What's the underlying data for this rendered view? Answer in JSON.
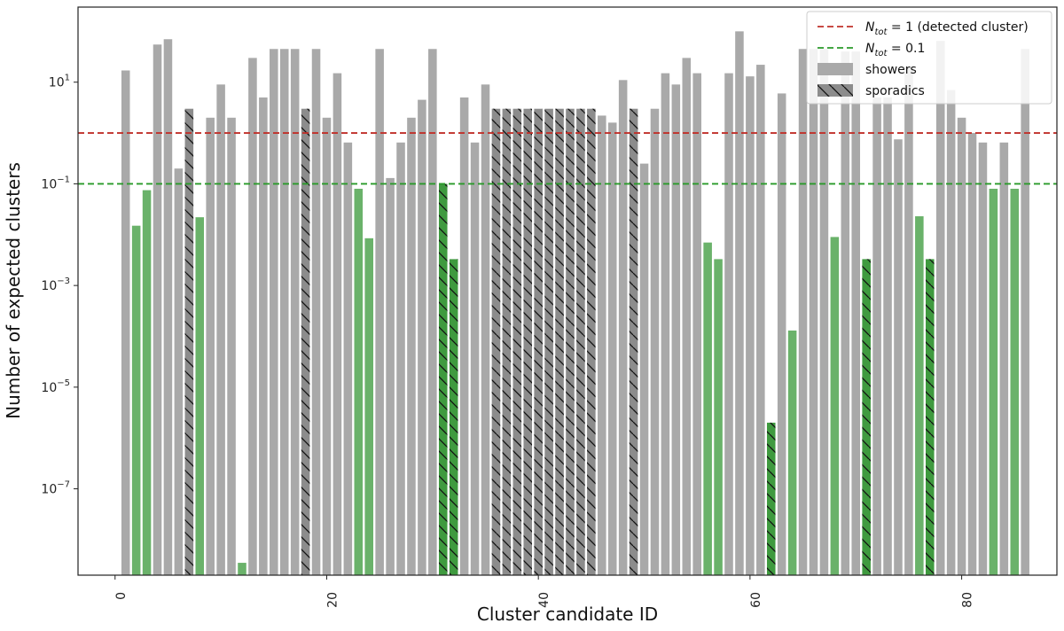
{
  "chart_data": {
    "type": "bar",
    "xlabel": "Cluster candidate ID",
    "ylabel": "Number of expected clusters",
    "xlim": [
      -3.5,
      89
    ],
    "ylim_log": [
      2e-09,
      300
    ],
    "yscale": "log",
    "x_ticks": [
      0,
      20,
      40,
      60,
      80
    ],
    "x_tick_labels": [
      "0",
      "20",
      "40",
      "60",
      "80"
    ],
    "y_ticks": [
      1e-07,
      1e-05,
      0.001,
      0.1,
      10
    ],
    "y_tick_labels": [
      {
        "base": "10",
        "exp": "−7"
      },
      {
        "base": "10",
        "exp": "−5"
      },
      {
        "base": "10",
        "exp": "−3"
      },
      {
        "base": "10",
        "exp": "−1"
      },
      {
        "base": "10",
        "exp": "1"
      }
    ],
    "grid": false,
    "legend_position": "top-right",
    "reference_lines": [
      {
        "name": "N_tot = 1 (detected cluster)",
        "value": 1,
        "color": "#c0302a",
        "label_main": "N",
        "label_sub": "tot",
        "label_rest": " = 1 (detected cluster)"
      },
      {
        "name": "N_tot = 0.1",
        "value": 0.1,
        "color": "#2a9a2a",
        "label_main": "N",
        "label_sub": "tot",
        "label_rest": " = 0.1"
      }
    ],
    "series": [
      {
        "name": "showers",
        "kind": "showers"
      },
      {
        "name": "sporadics",
        "kind": "sporadics"
      }
    ],
    "colors": {
      "showers_gray": "#a9a9a9",
      "sporadics_gray": "#8c8c8c",
      "showers_green": "#6ab26a",
      "sporadics_green": "#3f9a3f"
    },
    "bars": [
      {
        "id": 1,
        "value": 17,
        "kind": "showers"
      },
      {
        "id": 2,
        "value": 0.015,
        "kind": "showers"
      },
      {
        "id": 3,
        "value": 0.075,
        "kind": "showers"
      },
      {
        "id": 4,
        "value": 55,
        "kind": "showers"
      },
      {
        "id": 5,
        "value": 70,
        "kind": "showers"
      },
      {
        "id": 6,
        "value": 0.2,
        "kind": "showers"
      },
      {
        "id": 7,
        "value": 3,
        "kind": "sporadics"
      },
      {
        "id": 8,
        "value": 0.022,
        "kind": "showers"
      },
      {
        "id": 9,
        "value": 2,
        "kind": "showers"
      },
      {
        "id": 10,
        "value": 9,
        "kind": "showers"
      },
      {
        "id": 11,
        "value": 2,
        "kind": "showers"
      },
      {
        "id": 12,
        "value": 3.5e-09,
        "kind": "showers"
      },
      {
        "id": 13,
        "value": 30,
        "kind": "showers"
      },
      {
        "id": 14,
        "value": 5,
        "kind": "showers"
      },
      {
        "id": 15,
        "value": 45,
        "kind": "showers"
      },
      {
        "id": 16,
        "value": 45,
        "kind": "showers"
      },
      {
        "id": 17,
        "value": 45,
        "kind": "showers"
      },
      {
        "id": 18,
        "value": 3,
        "kind": "sporadics"
      },
      {
        "id": 19,
        "value": 45,
        "kind": "showers"
      },
      {
        "id": 20,
        "value": 2,
        "kind": "showers"
      },
      {
        "id": 21,
        "value": 15,
        "kind": "showers"
      },
      {
        "id": 22,
        "value": 0.65,
        "kind": "showers"
      },
      {
        "id": 23,
        "value": 0.08,
        "kind": "showers"
      },
      {
        "id": 24,
        "value": 0.0085,
        "kind": "showers"
      },
      {
        "id": 25,
        "value": 45,
        "kind": "showers"
      },
      {
        "id": 26,
        "value": 0.13,
        "kind": "showers"
      },
      {
        "id": 27,
        "value": 0.65,
        "kind": "showers"
      },
      {
        "id": 28,
        "value": 2,
        "kind": "showers"
      },
      {
        "id": 29,
        "value": 4.5,
        "kind": "showers"
      },
      {
        "id": 30,
        "value": 45,
        "kind": "showers"
      },
      {
        "id": 31,
        "value": 0.1,
        "kind": "sporadics"
      },
      {
        "id": 32,
        "value": 0.0033,
        "kind": "sporadics"
      },
      {
        "id": 33,
        "value": 5,
        "kind": "showers"
      },
      {
        "id": 34,
        "value": 0.65,
        "kind": "showers"
      },
      {
        "id": 35,
        "value": 9,
        "kind": "showers"
      },
      {
        "id": 36,
        "value": 3,
        "kind": "sporadics"
      },
      {
        "id": 37,
        "value": 3,
        "kind": "sporadics"
      },
      {
        "id": 38,
        "value": 3,
        "kind": "sporadics"
      },
      {
        "id": 39,
        "value": 3,
        "kind": "sporadics"
      },
      {
        "id": 40,
        "value": 3,
        "kind": "sporadics"
      },
      {
        "id": 41,
        "value": 3,
        "kind": "sporadics"
      },
      {
        "id": 42,
        "value": 3,
        "kind": "sporadics"
      },
      {
        "id": 43,
        "value": 3,
        "kind": "sporadics"
      },
      {
        "id": 44,
        "value": 3,
        "kind": "sporadics"
      },
      {
        "id": 45,
        "value": 3,
        "kind": "sporadics"
      },
      {
        "id": 46,
        "value": 2.2,
        "kind": "showers"
      },
      {
        "id": 47,
        "value": 1.6,
        "kind": "showers"
      },
      {
        "id": 48,
        "value": 11,
        "kind": "showers"
      },
      {
        "id": 49,
        "value": 3,
        "kind": "sporadics"
      },
      {
        "id": 50,
        "value": 0.25,
        "kind": "showers"
      },
      {
        "id": 51,
        "value": 3,
        "kind": "showers"
      },
      {
        "id": 52,
        "value": 15,
        "kind": "showers"
      },
      {
        "id": 53,
        "value": 9,
        "kind": "showers"
      },
      {
        "id": 54,
        "value": 30,
        "kind": "showers"
      },
      {
        "id": 55,
        "value": 15,
        "kind": "showers"
      },
      {
        "id": 56,
        "value": 0.007,
        "kind": "showers"
      },
      {
        "id": 57,
        "value": 0.0033,
        "kind": "showers"
      },
      {
        "id": 58,
        "value": 15,
        "kind": "showers"
      },
      {
        "id": 59,
        "value": 100,
        "kind": "showers"
      },
      {
        "id": 60,
        "value": 13,
        "kind": "showers"
      },
      {
        "id": 61,
        "value": 22,
        "kind": "showers"
      },
      {
        "id": 62,
        "value": 2e-06,
        "kind": "sporadics"
      },
      {
        "id": 63,
        "value": 6,
        "kind": "showers"
      },
      {
        "id": 64,
        "value": 0.00013,
        "kind": "showers"
      },
      {
        "id": 65,
        "value": 45,
        "kind": "showers"
      },
      {
        "id": 66,
        "value": 45,
        "kind": "showers"
      },
      {
        "id": 67,
        "value": 45,
        "kind": "showers"
      },
      {
        "id": 68,
        "value": 0.009,
        "kind": "showers"
      },
      {
        "id": 69,
        "value": 40,
        "kind": "showers"
      },
      {
        "id": 70,
        "value": 40,
        "kind": "showers"
      },
      {
        "id": 71,
        "value": 0.0033,
        "kind": "sporadics"
      },
      {
        "id": 72,
        "value": 5,
        "kind": "showers"
      },
      {
        "id": 73,
        "value": 5,
        "kind": "showers"
      },
      {
        "id": 74,
        "value": 0.75,
        "kind": "showers"
      },
      {
        "id": 75,
        "value": 20,
        "kind": "showers"
      },
      {
        "id": 76,
        "value": 0.023,
        "kind": "showers"
      },
      {
        "id": 77,
        "value": 0.0033,
        "kind": "sporadics"
      },
      {
        "id": 78,
        "value": 65,
        "kind": "showers"
      },
      {
        "id": 79,
        "value": 7,
        "kind": "showers"
      },
      {
        "id": 80,
        "value": 2,
        "kind": "showers"
      },
      {
        "id": 81,
        "value": 1,
        "kind": "showers"
      },
      {
        "id": 82,
        "value": 0.65,
        "kind": "showers"
      },
      {
        "id": 83,
        "value": 0.08,
        "kind": "showers"
      },
      {
        "id": 84,
        "value": 0.65,
        "kind": "showers"
      },
      {
        "id": 85,
        "value": 0.08,
        "kind": "showers"
      },
      {
        "id": 86,
        "value": 45,
        "kind": "showers"
      }
    ]
  }
}
